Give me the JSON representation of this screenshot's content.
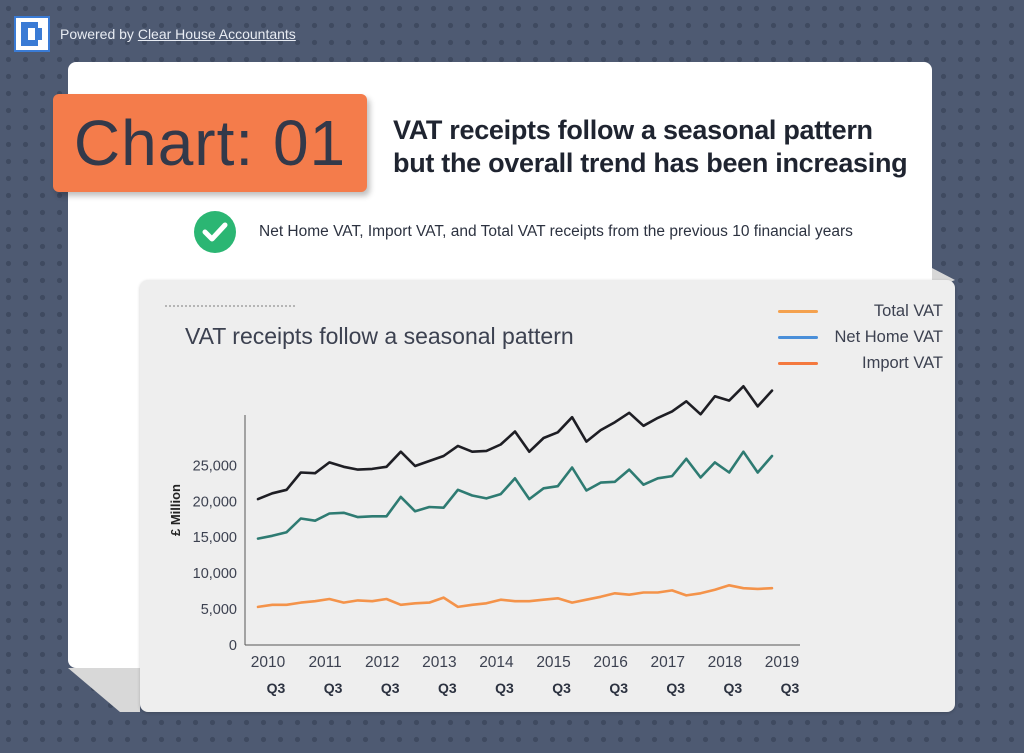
{
  "header": {
    "powered_prefix": "Powered by",
    "powered_link": "Clear House Accountants",
    "logo_icon": "clear-house-logo-icon"
  },
  "badge": {
    "label": "Chart: 01"
  },
  "headline": {
    "line1": "VAT receipts follow a seasonal pattern",
    "line2": "but the overall trend has been increasing"
  },
  "subtitle": {
    "icon": "checkmark-icon",
    "text": "Net Home VAT, Import VAT, and Total VAT receipts from the previous 10 financial years"
  },
  "colors": {
    "background": "#4e5a72",
    "badge": "#f47c4b",
    "check": "#2bb673",
    "total_line": "#1e1e24",
    "net_line": "#2e7b72",
    "import_line": "#f4934a",
    "legend_total": "#f4a14e",
    "legend_net": "#4a8fd9",
    "legend_import": "#f4793e"
  },
  "chart_data": {
    "type": "line",
    "title": "VAT receipts follow a seasonal pattern",
    "ylabel": "£ Million",
    "xlabel": "",
    "ylim": [
      0,
      32000
    ],
    "yticks": [
      {
        "label": "0",
        "value": 0
      },
      {
        "label": "5,000",
        "value": 5000
      },
      {
        "label": "10,000",
        "value": 10000
      },
      {
        "label": "15,000",
        "value": 15000
      },
      {
        "label": "20,000",
        "value": 20000
      },
      {
        "label": "25,000",
        "value": 25000
      }
    ],
    "xticks": [
      {
        "year": "2010",
        "quarter": "Q3",
        "index": 0
      },
      {
        "year": "2011",
        "quarter": "Q3",
        "index": 4
      },
      {
        "year": "2012",
        "quarter": "Q3",
        "index": 8
      },
      {
        "year": "2013",
        "quarter": "Q3",
        "index": 12
      },
      {
        "year": "2014",
        "quarter": "Q3",
        "index": 16
      },
      {
        "year": "2015",
        "quarter": "Q3",
        "index": 20
      },
      {
        "year": "2016",
        "quarter": "Q3",
        "index": 24
      },
      {
        "year": "2017",
        "quarter": "Q3",
        "index": 28
      },
      {
        "year": "2018",
        "quarter": "Q3",
        "index": 32
      },
      {
        "year": "2019",
        "quarter": "Q3",
        "index": 36
      }
    ],
    "legend": [
      {
        "name": "Total VAT",
        "color": "#f4a14e"
      },
      {
        "name": "Net Home VAT",
        "color": "#4a8fd9"
      },
      {
        "name": "Import VAT",
        "color": "#f4793e"
      }
    ],
    "series": [
      {
        "name": "Total VAT",
        "color": "#1e1e24",
        "values": [
          20300,
          21100,
          21600,
          24000,
          23900,
          25400,
          24800,
          24400,
          24500,
          24800,
          26900,
          24900,
          25600,
          26300,
          27700,
          26900,
          27000,
          27900,
          29700,
          26900,
          28800,
          29600,
          31700,
          28300,
          29900,
          31000,
          32300,
          30500,
          31600,
          32500,
          33900,
          32100,
          34600,
          34000,
          36000,
          33200,
          35400
        ]
      },
      {
        "name": "Net Home VAT",
        "color": "#2e7b72",
        "values": [
          14800,
          15200,
          15700,
          17600,
          17300,
          18300,
          18400,
          17800,
          17900,
          17900,
          20600,
          18600,
          19200,
          19100,
          21600,
          20800,
          20400,
          21000,
          23200,
          20300,
          21800,
          22100,
          24700,
          21500,
          22600,
          22700,
          24400,
          22300,
          23200,
          23500,
          25900,
          23300,
          25400,
          24000,
          26900,
          24000,
          26300
        ]
      },
      {
        "name": "Import VAT",
        "color": "#f4934a",
        "values": [
          5300,
          5600,
          5600,
          5900,
          6100,
          6400,
          5900,
          6200,
          6100,
          6400,
          5600,
          5800,
          5900,
          6600,
          5300,
          5600,
          5800,
          6300,
          6100,
          6100,
          6300,
          6500,
          5900,
          6300,
          6700,
          7200,
          7000,
          7300,
          7300,
          7600,
          6900,
          7200,
          7700,
          8300,
          7900,
          7800,
          7900
        ]
      }
    ]
  }
}
